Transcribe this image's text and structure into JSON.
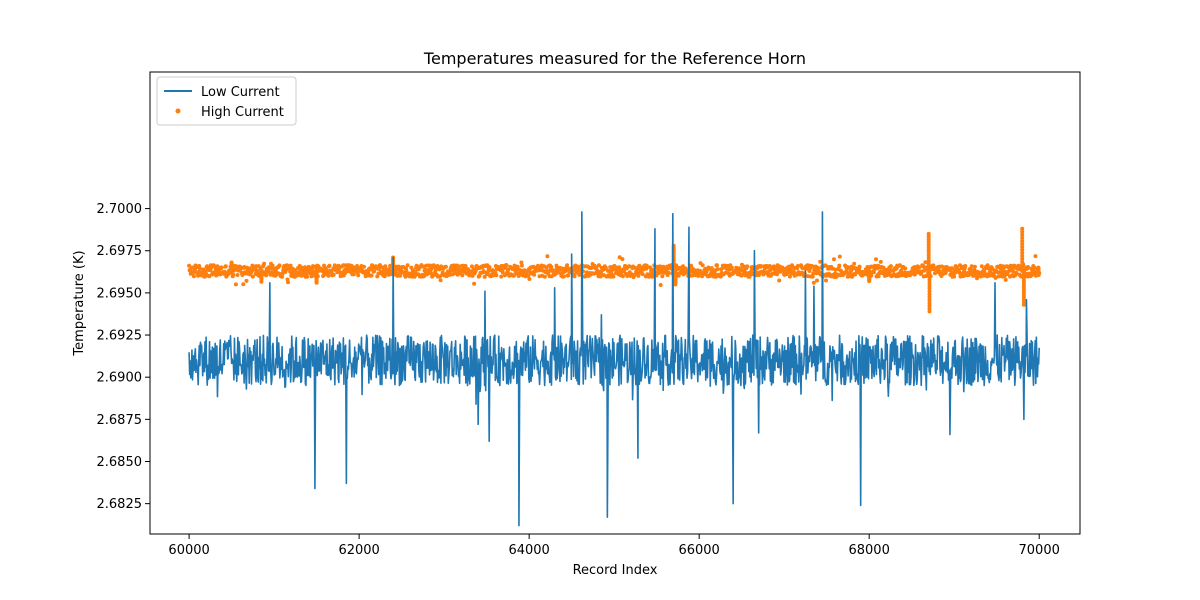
{
  "chart_data": {
    "type": "line",
    "title": "Temperatures measured for the Reference Horn",
    "xlabel": "Record Index",
    "ylabel": "Temperature (K)",
    "xlim": [
      59540,
      70480
    ],
    "ylim": [
      2.6807,
      2.7081
    ],
    "xticks": [
      60000,
      62000,
      64000,
      66000,
      68000,
      70000
    ],
    "xtick_labels": [
      "60000",
      "62000",
      "64000",
      "66000",
      "68000",
      "70000"
    ],
    "yticks": [
      2.6825,
      2.685,
      2.6875,
      2.69,
      2.6925,
      2.695,
      2.6975,
      2.7
    ],
    "ytick_labels": [
      "2.6825",
      "2.6850",
      "2.6875",
      "2.6900",
      "2.6925",
      "2.6950",
      "2.6975",
      "2.7000"
    ],
    "grid": false,
    "legend_position": "top-left",
    "series": [
      {
        "name": "Low Current",
        "style": "line",
        "color": "#1f77b4",
        "baseline": 2.691,
        "noise_range": [
          2.6895,
          2.6925
        ],
        "x_range": [
          60000,
          70000
        ],
        "spikes": [
          {
            "x": 60950,
            "y": 2.6956
          },
          {
            "x": 61480,
            "y": 2.6834
          },
          {
            "x": 61850,
            "y": 2.6837
          },
          {
            "x": 62400,
            "y": 2.6971
          },
          {
            "x": 63400,
            "y": 2.6872
          },
          {
            "x": 63480,
            "y": 2.6951
          },
          {
            "x": 63530,
            "y": 2.6862
          },
          {
            "x": 63880,
            "y": 2.6812
          },
          {
            "x": 64300,
            "y": 2.6953
          },
          {
            "x": 64500,
            "y": 2.6973
          },
          {
            "x": 64620,
            "y": 2.6998
          },
          {
            "x": 64850,
            "y": 2.6937
          },
          {
            "x": 64920,
            "y": 2.6817
          },
          {
            "x": 65280,
            "y": 2.6852
          },
          {
            "x": 65480,
            "y": 2.6988
          },
          {
            "x": 65690,
            "y": 2.6997
          },
          {
            "x": 65880,
            "y": 2.6989
          },
          {
            "x": 66400,
            "y": 2.6825
          },
          {
            "x": 66650,
            "y": 2.6975
          },
          {
            "x": 66700,
            "y": 2.6867
          },
          {
            "x": 67250,
            "y": 2.6963
          },
          {
            "x": 67350,
            "y": 2.6954
          },
          {
            "x": 67450,
            "y": 2.6998
          },
          {
            "x": 67900,
            "y": 2.6824
          },
          {
            "x": 68950,
            "y": 2.6866
          },
          {
            "x": 69480,
            "y": 2.6956
          },
          {
            "x": 69820,
            "y": 2.6875
          },
          {
            "x": 69850,
            "y": 2.6946
          }
        ]
      },
      {
        "name": "High Current",
        "style": "scatter",
        "color": "#ff7f0e",
        "baseline": 2.6963,
        "noise_range": [
          2.696,
          2.6967
        ],
        "x_range": [
          60000,
          70000
        ],
        "excursions": [
          {
            "x": 60500,
            "y": 2.6968
          },
          {
            "x": 60850,
            "y": 2.6958
          },
          {
            "x": 61500,
            "y": 2.6956
          },
          {
            "x": 62400,
            "y": 2.6971
          },
          {
            "x": 65700,
            "y": 2.6978
          },
          {
            "x": 65720,
            "y": 2.6955
          },
          {
            "x": 68000,
            "y": 2.6957
          },
          {
            "x": 68700,
            "y": 2.6985
          },
          {
            "x": 68710,
            "y": 2.6939
          },
          {
            "x": 69800,
            "y": 2.6988
          },
          {
            "x": 69820,
            "y": 2.6943
          },
          {
            "x": 69990,
            "y": 2.6965
          }
        ]
      }
    ]
  }
}
